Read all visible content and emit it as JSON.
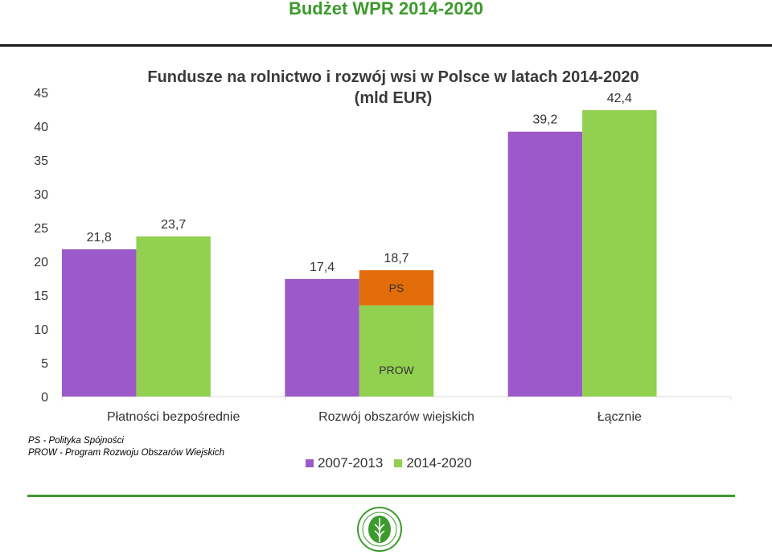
{
  "slide": {
    "title": "Budżet WPR 2014-2020"
  },
  "colors": {
    "accent": "#3d9a2c",
    "series_2007_2013": "#9b59c9",
    "series_2014_2020": "#92d050",
    "ps": "#e36c0a"
  },
  "notes": [
    "PS - Polityka Spójności",
    "PROW - Program Rozwoju Obszarów Wiejskich"
  ],
  "chart_data": {
    "type": "bar",
    "title": "Fundusze na rolnictwo i rozwój wsi w Polsce w latach 2014-2020",
    "subtitle": "(mld EUR)",
    "categories": [
      "Płatności bezpośrednie",
      "Rozwój obszarów wiejskich",
      "Łącznie"
    ],
    "series": [
      {
        "name": "2007-2013",
        "color": "#9b59c9",
        "values": [
          21.8,
          17.4,
          39.2
        ],
        "labels": [
          "21,8",
          "17,4",
          "39,2"
        ]
      },
      {
        "name": "2014-2020",
        "color": "#92d050",
        "values": [
          23.7,
          18.7,
          42.4
        ],
        "labels": [
          "23,7",
          "18,7",
          "42,4"
        ]
      }
    ],
    "stacked_breakdown": {
      "category": "Rozwój obszarów wiejskich",
      "series": "2014-2020",
      "segments": [
        {
          "label": "PROW",
          "value": 13.5,
          "color": "#92d050"
        },
        {
          "label": "PS",
          "value": 5.2,
          "color": "#e36c0a"
        }
      ]
    },
    "ylim": [
      0,
      45
    ],
    "yticks": [
      0,
      5,
      10,
      15,
      20,
      25,
      30,
      35,
      40,
      45
    ],
    "xlabel": "",
    "ylabel": "",
    "grid": false,
    "legend": "bottom-center"
  }
}
